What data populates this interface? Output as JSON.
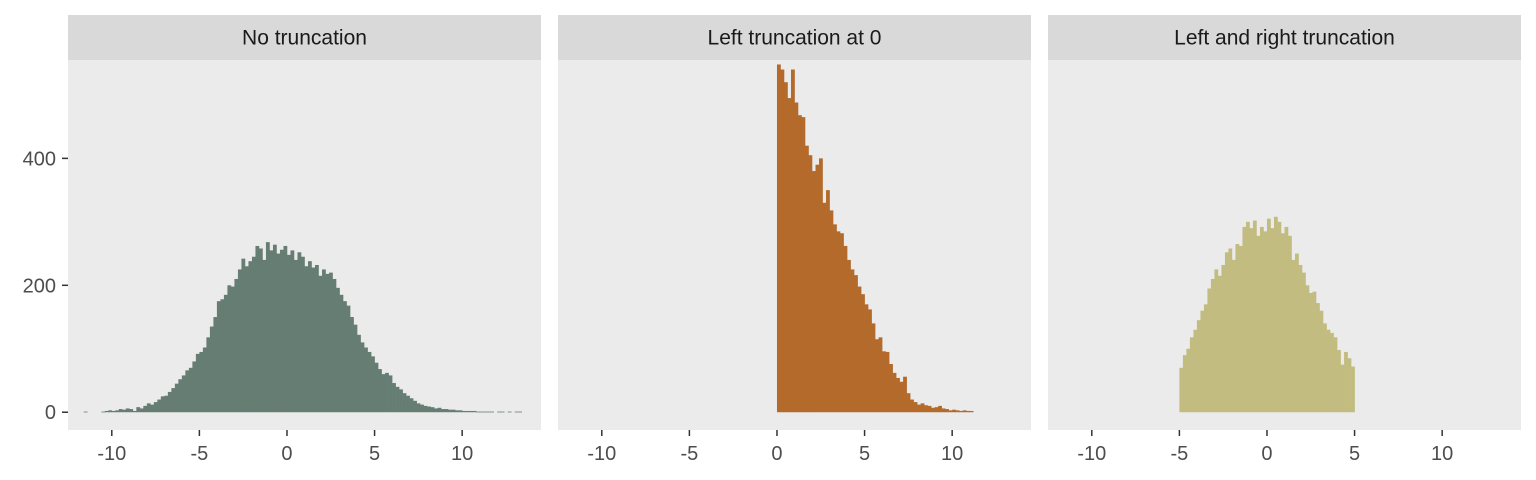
{
  "chart_data": [
    {
      "type": "bar",
      "title": "No truncation",
      "fill": "#667d73",
      "xlim": [
        -12.5,
        14.5
      ],
      "ylim": [
        -28,
        555
      ],
      "xticks": [
        -10,
        -5,
        0,
        5,
        10
      ],
      "yticks": [
        0,
        200,
        400
      ],
      "bin_width": 0.2,
      "x": [
        -11.5,
        -11.3,
        -11.1,
        -10.9,
        -10.7,
        -10.5,
        -10.3,
        -10.1,
        -9.9,
        -9.7,
        -9.5,
        -9.3,
        -9.1,
        -8.9,
        -8.7,
        -8.5,
        -8.3,
        -8.1,
        -7.9,
        -7.7,
        -7.5,
        -7.3,
        -7.1,
        -6.9,
        -6.7,
        -6.5,
        -6.3,
        -6.1,
        -5.9,
        -5.7,
        -5.5,
        -5.3,
        -5.1,
        -4.9,
        -4.7,
        -4.5,
        -4.3,
        -4.1,
        -3.9,
        -3.7,
        -3.5,
        -3.3,
        -3.1,
        -2.9,
        -2.7,
        -2.5,
        -2.3,
        -2.1,
        -1.9,
        -1.7,
        -1.5,
        -1.3,
        -1.1,
        -0.9,
        -0.7,
        -0.5,
        -0.3,
        -0.1,
        0.1,
        0.3,
        0.5,
        0.7,
        0.9,
        1.1,
        1.3,
        1.5,
        1.7,
        1.9,
        2.1,
        2.3,
        2.5,
        2.7,
        2.9,
        3.1,
        3.3,
        3.5,
        3.7,
        3.9,
        4.1,
        4.3,
        4.5,
        4.7,
        4.9,
        5.1,
        5.3,
        5.5,
        5.7,
        5.9,
        6.1,
        6.3,
        6.5,
        6.7,
        6.9,
        7.1,
        7.3,
        7.5,
        7.7,
        7.9,
        8.1,
        8.3,
        8.5,
        8.7,
        8.9,
        9.1,
        9.3,
        9.5,
        9.7,
        9.9,
        10.1,
        10.3,
        10.5,
        10.7,
        10.9,
        11.1,
        11.3,
        11.5,
        11.7,
        11.9,
        12.1,
        12.3,
        12.5,
        12.7,
        12.9,
        13.1,
        13.3
      ],
      "values": [
        1,
        0,
        0,
        0,
        0,
        1,
        2,
        3,
        2,
        3,
        5,
        4,
        6,
        5,
        2,
        8,
        6,
        10,
        14,
        12,
        16,
        20,
        25,
        26,
        32,
        38,
        45,
        52,
        58,
        66,
        70,
        80,
        92,
        95,
        102,
        118,
        135,
        150,
        175,
        178,
        185,
        200,
        198,
        210,
        225,
        242,
        230,
        238,
        245,
        262,
        258,
        240,
        268,
        255,
        264,
        250,
        256,
        262,
        248,
        255,
        240,
        252,
        245,
        230,
        238,
        228,
        232,
        215,
        225,
        218,
        220,
        210,
        196,
        185,
        175,
        168,
        150,
        138,
        122,
        110,
        102,
        95,
        88,
        78,
        68,
        60,
        62,
        58,
        46,
        40,
        36,
        30,
        26,
        22,
        18,
        14,
        12,
        10,
        9,
        8,
        6,
        7,
        5,
        5,
        4,
        4,
        3,
        3,
        2,
        2,
        2,
        2,
        1,
        1,
        1,
        1,
        1,
        0,
        1,
        1,
        0,
        1,
        0,
        1,
        1
      ]
    },
    {
      "type": "bar",
      "title": "Left truncation at 0",
      "fill": "#b36a2a",
      "xlim": [
        -12.5,
        14.5
      ],
      "ylim": [
        -28,
        555
      ],
      "xticks": [
        -10,
        -5,
        0,
        5,
        10
      ],
      "yticks": [],
      "bin_width": 0.2,
      "x": [
        0.1,
        0.3,
        0.5,
        0.7,
        0.9,
        1.1,
        1.3,
        1.5,
        1.7,
        1.9,
        2.1,
        2.3,
        2.5,
        2.7,
        2.9,
        3.1,
        3.3,
        3.5,
        3.7,
        3.9,
        4.1,
        4.3,
        4.5,
        4.7,
        4.9,
        5.1,
        5.3,
        5.5,
        5.7,
        5.9,
        6.1,
        6.3,
        6.5,
        6.7,
        6.9,
        7.1,
        7.3,
        7.5,
        7.7,
        7.9,
        8.1,
        8.3,
        8.5,
        8.7,
        8.9,
        9.1,
        9.3,
        9.5,
        9.7,
        9.9,
        10.1,
        10.3,
        10.5,
        10.7,
        10.9,
        11.1
      ],
      "values": [
        548,
        540,
        520,
        495,
        540,
        488,
        468,
        465,
        420,
        405,
        380,
        390,
        400,
        330,
        350,
        318,
        296,
        285,
        282,
        262,
        240,
        225,
        216,
        198,
        186,
        170,
        162,
        140,
        115,
        118,
        96,
        95,
        76,
        62,
        54,
        48,
        56,
        30,
        20,
        16,
        12,
        14,
        11,
        10,
        7,
        8,
        10,
        6,
        5,
        3,
        4,
        3,
        2,
        3,
        2,
        2
      ]
    },
    {
      "type": "bar",
      "title": "Left and right truncation",
      "fill": "#c3bc80",
      "xlim": [
        -12.5,
        14.5
      ],
      "ylim": [
        -28,
        555
      ],
      "xticks": [
        -10,
        -5,
        0,
        5,
        10
      ],
      "yticks": [],
      "bin_width": 0.2,
      "x": [
        -4.9,
        -4.7,
        -4.5,
        -4.3,
        -4.1,
        -3.9,
        -3.7,
        -3.5,
        -3.3,
        -3.1,
        -2.9,
        -2.7,
        -2.5,
        -2.3,
        -2.1,
        -1.9,
        -1.7,
        -1.5,
        -1.3,
        -1.1,
        -0.9,
        -0.7,
        -0.5,
        -0.3,
        -0.1,
        0.1,
        0.3,
        0.5,
        0.7,
        0.9,
        1.1,
        1.3,
        1.5,
        1.7,
        1.9,
        2.1,
        2.3,
        2.5,
        2.7,
        2.9,
        3.1,
        3.3,
        3.5,
        3.7,
        3.9,
        4.1,
        4.3,
        4.5,
        4.7,
        4.9
      ],
      "values": [
        70,
        90,
        100,
        118,
        130,
        145,
        160,
        170,
        195,
        210,
        225,
        215,
        232,
        252,
        258,
        240,
        265,
        262,
        292,
        300,
        290,
        302,
        278,
        292,
        285,
        305,
        290,
        308,
        300,
        282,
        292,
        278,
        240,
        250,
        232,
        220,
        200,
        188,
        190,
        172,
        160,
        140,
        130,
        125,
        118,
        98,
        75,
        95,
        85,
        72
      ]
    }
  ]
}
